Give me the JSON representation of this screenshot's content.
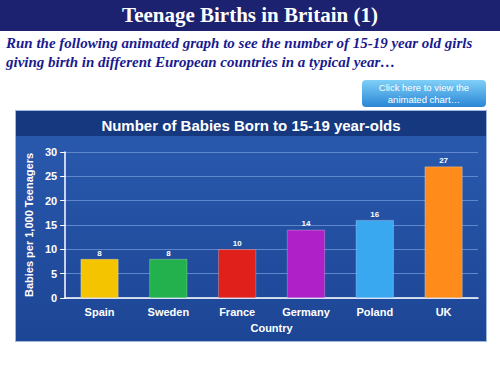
{
  "page": {
    "title": "Teenage Births in Britain (1)",
    "subtitle": "Run the following animated graph to see the number of 15-19 year old girls giving birth in different European countries in a typical year…",
    "button": "Click here to view the animated chart…"
  },
  "chart_data": {
    "type": "bar",
    "title": "Number of Babies Born to 15-19 year-olds",
    "x_label": "Country",
    "y_label": "Babies per 1,000 Teenagers",
    "categories": [
      "Spain",
      "Sweden",
      "France",
      "Germany",
      "Poland",
      "UK"
    ],
    "values": [
      8,
      8,
      10,
      14,
      16,
      27
    ],
    "colors": [
      "#f5c400",
      "#22b14c",
      "#e0201b",
      "#b020c8",
      "#3aa8f0",
      "#ff8c1a"
    ],
    "ylim": [
      0,
      30
    ],
    "yticks": [
      0,
      5,
      10,
      15,
      20,
      25,
      30
    ],
    "grid": true,
    "data_labels": true
  }
}
